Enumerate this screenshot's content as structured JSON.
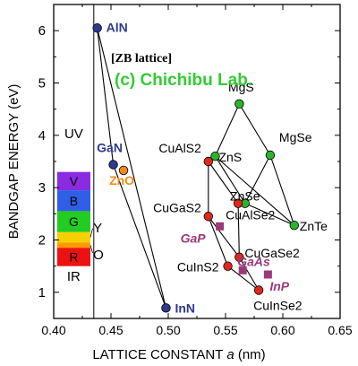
{
  "chart_data": {
    "type": "scatter",
    "title": "[ZB lattice]",
    "watermark": "(c) Chichibu Lab.",
    "xlabel_prefix": "LATTICE CONSTANT ",
    "xlabel_var": "a",
    "xlabel_suffix": " (nm)",
    "ylabel": "BANDGAP ENERGY  (eV)",
    "xlim": [
      0.4,
      0.65
    ],
    "ylim": [
      0.5,
      6.5
    ],
    "x_ticks": [
      "0.40",
      "0.45",
      "0.50",
      "0.55",
      "0.60",
      "0.65"
    ],
    "x_tick_values": [
      0.4,
      0.45,
      0.5,
      0.55,
      0.6,
      0.65
    ],
    "y_ticks": [
      "1",
      "2",
      "3",
      "4",
      "5",
      "6"
    ],
    "y_tick_values": [
      1,
      2,
      3,
      4,
      5,
      6
    ],
    "grid": false,
    "divider_x": 0.435,
    "spectrum": {
      "x_range": [
        0.403,
        0.432
      ],
      "labels": {
        "uv": "UV",
        "ir": "IR",
        "y": "Y",
        "o": "O"
      },
      "bands": [
        {
          "label": "V",
          "from": 2.95,
          "to": 3.3,
          "color": "#8a2be2"
        },
        {
          "label": "B",
          "from": 2.55,
          "to": 2.95,
          "color": "#2f5fe6"
        },
        {
          "label": "G",
          "from": 2.15,
          "to": 2.55,
          "color": "#22cc22"
        },
        {
          "label": "",
          "from": 1.95,
          "to": 2.15,
          "color": "#f4d000"
        },
        {
          "label": "",
          "from": 1.85,
          "to": 1.95,
          "color": "#ff9900"
        },
        {
          "label": "R",
          "from": 1.5,
          "to": 1.85,
          "color": "#ee1111"
        }
      ]
    },
    "colors": {
      "nitride": "#2e3a8c",
      "oxide": "#f08a1c",
      "chalcopyrite": "#e0281e",
      "zb_ii_vi": "#2bb52b",
      "iii_v": "#9b3a78",
      "watermark": "#33cc33"
    },
    "series": [
      {
        "group": "nitride",
        "points": [
          {
            "label": "AlN",
            "x": 0.438,
            "y": 6.05
          },
          {
            "label": "GaN",
            "x": 0.452,
            "y": 3.44
          },
          {
            "label": "InN",
            "x": 0.498,
            "y": 0.7
          }
        ]
      },
      {
        "group": "oxide",
        "points": [
          {
            "label": "ZnO",
            "x": 0.461,
            "y": 3.33
          }
        ]
      },
      {
        "group": "zb_ii_vi",
        "points": [
          {
            "label": "MgS",
            "x": 0.562,
            "y": 4.6
          },
          {
            "label": "ZnS",
            "x": 0.541,
            "y": 3.6
          },
          {
            "label": "MgSe",
            "x": 0.589,
            "y": 3.62
          },
          {
            "label": "ZnSe",
            "x": 0.567,
            "y": 2.7
          },
          {
            "label": "ZnTe",
            "x": 0.61,
            "y": 2.28
          }
        ]
      },
      {
        "group": "chalcopyrite",
        "points": [
          {
            "label": "CuAlS2",
            "x": 0.535,
            "y": 3.5
          },
          {
            "label": "CuAlSe2",
            "x": 0.561,
            "y": 2.7
          },
          {
            "label": "CuGaS2",
            "x": 0.535,
            "y": 2.45
          },
          {
            "label": "CuGaSe2",
            "x": 0.562,
            "y": 1.67
          },
          {
            "label": "CuInS2",
            "x": 0.552,
            "y": 1.5
          },
          {
            "label": "CuInSe2",
            "x": 0.579,
            "y": 1.04
          }
        ]
      },
      {
        "group": "iii_v",
        "points": [
          {
            "label": "GaP",
            "x": 0.545,
            "y": 2.26
          },
          {
            "label": "GaAs",
            "x": 0.565,
            "y": 1.42
          },
          {
            "label": "InP",
            "x": 0.587,
            "y": 1.34
          }
        ]
      }
    ],
    "connections": [
      [
        "AlN",
        "GaN"
      ],
      [
        "GaN",
        "InN"
      ],
      [
        "AlN",
        "InN"
      ],
      [
        "MgS",
        "ZnS"
      ],
      [
        "MgS",
        "MgSe"
      ],
      [
        "ZnS",
        "ZnSe"
      ],
      [
        "MgSe",
        "ZnSe"
      ],
      [
        "ZnS",
        "ZnTe"
      ],
      [
        "MgSe",
        "ZnTe"
      ],
      [
        "ZnSe",
        "ZnTe"
      ],
      [
        "CuAlS2",
        "CuAlSe2"
      ],
      [
        "CuAlS2",
        "CuGaS2"
      ],
      [
        "CuAlSe2",
        "CuGaSe2"
      ],
      [
        "CuGaS2",
        "CuGaSe2"
      ],
      [
        "CuGaS2",
        "CuInS2"
      ],
      [
        "CuGaSe2",
        "CuInSe2"
      ],
      [
        "CuInS2",
        "CuInSe2"
      ]
    ]
  }
}
